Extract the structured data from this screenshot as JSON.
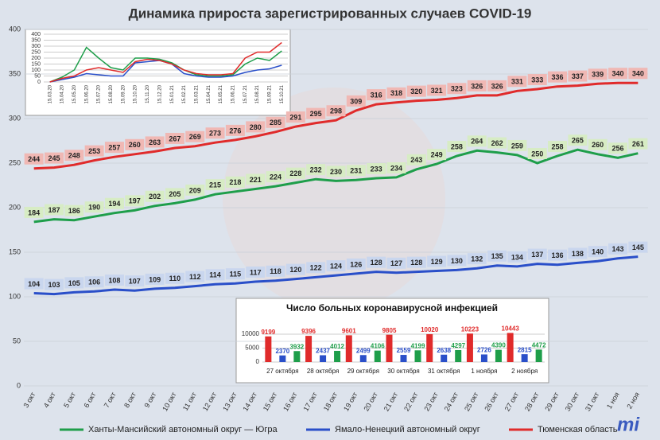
{
  "chart_data": [
    {
      "type": "line",
      "title": "Динамика прироста зарегистрированных случаев COVID-19",
      "categories": [
        "3 окт",
        "4 окт",
        "5 окт",
        "6 окт",
        "7 окт",
        "8 окт",
        "9 окт",
        "10 окт",
        "11 окт",
        "12 окт",
        "13 окт",
        "14 окт",
        "15 окт",
        "16 окт",
        "17 окт",
        "18 окт",
        "19 окт",
        "20 окт",
        "21 окт",
        "22 окт",
        "23 окт",
        "24 окт",
        "25 окт",
        "26 окт",
        "27 окт",
        "28 окт",
        "29 окт",
        "30 окт",
        "31 окт",
        "1 ноя",
        "2 ноя"
      ],
      "series": [
        {
          "name": "Ханты-Мансийский автономный округ — Югра",
          "color": "#1e9e4a",
          "label_fill": "#d7ecc4",
          "values": [
            184,
            187,
            186,
            190,
            194,
            197,
            202,
            205,
            209,
            215,
            218,
            221,
            224,
            228,
            232,
            230,
            231,
            233,
            234,
            243,
            249,
            258,
            264,
            262,
            259,
            250,
            258,
            265,
            260,
            256,
            261
          ]
        },
        {
          "name": "Ямало-Ненецкий автономный округ",
          "color": "#2a4fc9",
          "label_fill": "#c9d6ee",
          "values": [
            104,
            103,
            105,
            106,
            108,
            107,
            109,
            110,
            112,
            114,
            115,
            117,
            118,
            120,
            122,
            124,
            126,
            128,
            127,
            128,
            129,
            130,
            132,
            135,
            134,
            137,
            136,
            138,
            140,
            143,
            145
          ]
        },
        {
          "name": "Тюменская область",
          "color": "#e02b2b",
          "label_fill": "#f0b8b4",
          "values": [
            244,
            245,
            248,
            253,
            257,
            260,
            263,
            267,
            269,
            273,
            276,
            280,
            285,
            291,
            295,
            298,
            309,
            316,
            318,
            320,
            321,
            323,
            326,
            326,
            331,
            333,
            336,
            337,
            339,
            340,
            340
          ]
        }
      ],
      "ylim": [
        0,
        400
      ],
      "yticks": [
        0,
        50,
        100,
        150,
        200,
        250,
        300,
        350,
        400
      ],
      "grid": true,
      "legend": "bottom"
    },
    {
      "type": "line",
      "categories": [
        "15.03.20",
        "15.04.20",
        "15.05.20",
        "15.06.20",
        "15.07.20",
        "15.08.20",
        "15.09.20",
        "15.10.20",
        "15.11.20",
        "15.12.20",
        "15.01.21",
        "15.02.21",
        "15.03.21",
        "15.04.21",
        "15.05.21",
        "15.06.21",
        "15.07.21",
        "15.08.21",
        "15.09.21",
        "15.10.21"
      ],
      "series": [
        {
          "color": "#1e9e4a",
          "values": [
            0,
            40,
            100,
            290,
            200,
            120,
            100,
            200,
            200,
            190,
            160,
            100,
            60,
            50,
            50,
            60,
            150,
            200,
            180,
            260
          ]
        },
        {
          "color": "#2a4fc9",
          "values": [
            0,
            20,
            40,
            70,
            60,
            50,
            50,
            160,
            170,
            180,
            150,
            70,
            50,
            40,
            40,
            50,
            80,
            100,
            110,
            140
          ]
        },
        {
          "color": "#e02b2b",
          "values": [
            0,
            30,
            50,
            100,
            120,
            100,
            80,
            170,
            190,
            180,
            150,
            100,
            70,
            60,
            60,
            70,
            200,
            250,
            250,
            330
          ]
        }
      ],
      "ylim": [
        0,
        400
      ],
      "yticks": [
        0,
        50,
        100,
        150,
        200,
        250,
        300,
        350,
        400
      ],
      "grid": true
    },
    {
      "type": "bar",
      "title": "Число больных коронавирусной инфекцией",
      "categories": [
        "27 октября",
        "28 октября",
        "29 октября",
        "30 октября",
        "31 октября",
        "1 ноября",
        "2 ноября"
      ],
      "series": [
        {
          "color": "#e02b2b",
          "values": [
            9199,
            9396,
            9601,
            9805,
            10020,
            10223,
            10443
          ]
        },
        {
          "color": "#2a4fc9",
          "values": [
            2370,
            2437,
            2499,
            2559,
            2638,
            2726,
            2815
          ]
        },
        {
          "color": "#1e9e4a",
          "values": [
            3932,
            4012,
            4106,
            4199,
            4297,
            4390,
            4472
          ]
        }
      ],
      "ylim": [
        0,
        12000
      ],
      "yticks": [
        0,
        5000,
        10000
      ],
      "grid": true
    }
  ],
  "logo": "mi"
}
